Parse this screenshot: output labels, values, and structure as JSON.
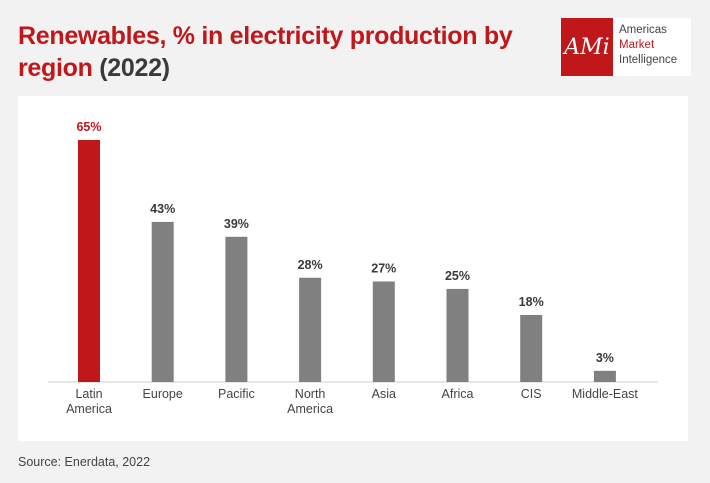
{
  "title": {
    "part1": "Renewables, % in electricity production by region",
    "part2": "(2022)"
  },
  "logo": {
    "mark": "AMi",
    "line1": "Americas",
    "line2": "Market",
    "line3": "Intelligence"
  },
  "source": "Source: Enerdata, 2022",
  "colors": {
    "highlight": "#c0171b",
    "bar": "#808080",
    "label_highlight": "#c0171b",
    "label": "#3a3a3a"
  },
  "chart_data": {
    "type": "bar",
    "categories": [
      [
        "Latin",
        "America"
      ],
      [
        "Europe"
      ],
      [
        "Pacific"
      ],
      [
        "North",
        "America"
      ],
      [
        "Asia"
      ],
      [
        "Africa"
      ],
      [
        "CIS"
      ],
      [
        "Middle-East"
      ]
    ],
    "values": [
      65,
      43,
      39,
      28,
      27,
      25,
      18,
      3
    ],
    "data_labels": [
      "65%",
      "43%",
      "39%",
      "28%",
      "27%",
      "25%",
      "18%",
      "3%"
    ],
    "highlight_index": 0,
    "unit": "%",
    "ylim": [
      0,
      65
    ],
    "grid": false,
    "legend": "none"
  }
}
